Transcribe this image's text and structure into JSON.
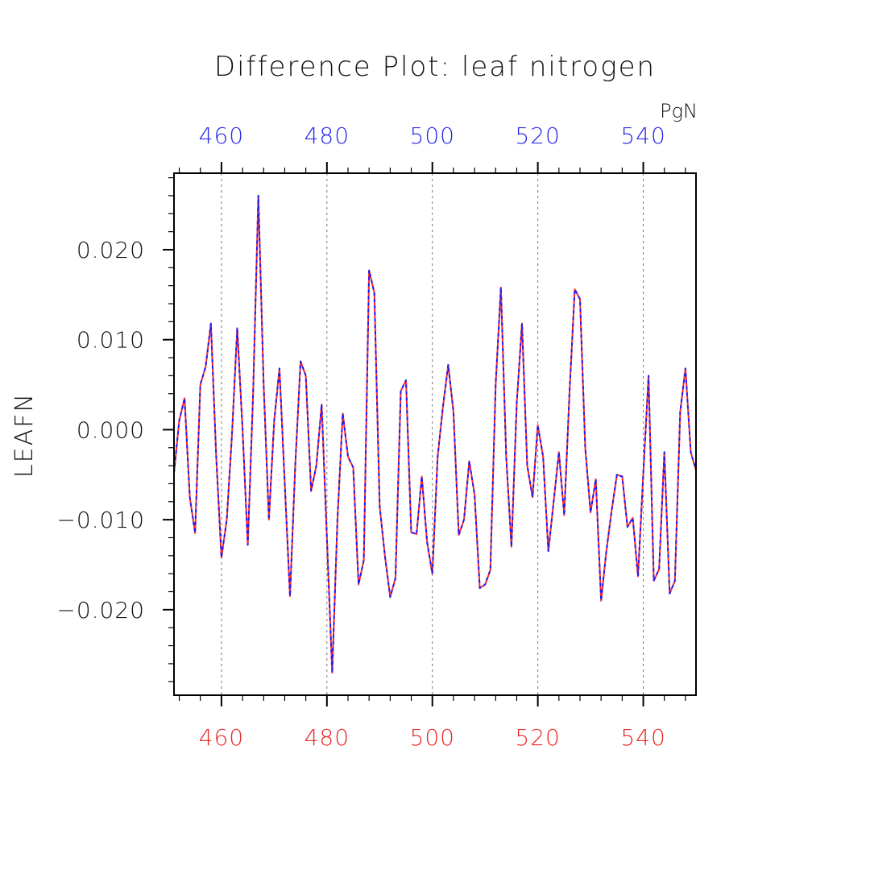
{
  "chart_data": {
    "type": "line",
    "title": "Difference Plot: leaf nitrogen",
    "ylabel": "LEAFN",
    "units": "PgN",
    "xlim": [
      451,
      550
    ],
    "ylim": [
      -0.0295,
      0.0285
    ],
    "x_ticks": [
      460,
      480,
      500,
      520,
      540
    ],
    "y_ticks": [
      -0.02,
      -0.01,
      0.0,
      0.01,
      0.02
    ],
    "y_tick_labels": [
      "−0.020",
      "−0.010",
      "0.000",
      "0.010",
      "0.020"
    ],
    "top_axis_color": "#2a2ae8",
    "bottom_axis_color": "#e82a2a",
    "grid": "vertical dashed at major x ticks",
    "series": [
      {
        "color": "#ff2a2a",
        "style": "solid",
        "x": [
          451,
          452,
          453,
          454,
          455,
          456,
          457,
          458,
          459,
          460,
          461,
          462,
          463,
          464,
          465,
          466,
          467,
          468,
          469,
          470,
          471,
          472,
          473,
          474,
          475,
          476,
          477,
          478,
          479,
          480,
          481,
          482,
          483,
          484,
          485,
          486,
          487,
          488,
          489,
          490,
          491,
          492,
          493,
          494,
          495,
          496,
          497,
          498,
          499,
          500,
          501,
          502,
          503,
          504,
          505,
          506,
          507,
          508,
          509,
          510,
          511,
          512,
          513,
          514,
          515,
          516,
          517,
          518,
          519,
          520,
          521,
          522,
          523,
          524,
          525,
          526,
          527,
          528,
          529,
          530,
          531,
          532,
          533,
          534,
          535,
          536,
          537,
          538,
          539,
          540,
          541,
          542,
          543,
          544,
          545,
          546,
          547,
          548,
          549,
          550
        ],
        "y": [
          -0.0048,
          0.001,
          0.0035,
          -0.0075,
          -0.0115,
          0.005,
          0.007,
          0.0118,
          -0.003,
          -0.0142,
          -0.01,
          -0.0005,
          0.0113,
          0.0,
          -0.0128,
          0.004,
          0.026,
          0.005,
          -0.01,
          0.001,
          0.0068,
          -0.006,
          -0.0185,
          -0.004,
          0.0076,
          0.006,
          -0.0068,
          -0.004,
          0.0028,
          -0.012,
          -0.027,
          -0.01,
          0.0018,
          -0.003,
          -0.0042,
          -0.0172,
          -0.0145,
          0.0177,
          0.0152,
          -0.0085,
          -0.014,
          -0.0186,
          -0.0165,
          0.0043,
          0.0055,
          -0.0114,
          -0.0116,
          -0.0052,
          -0.0125,
          -0.016,
          -0.003,
          0.0025,
          0.0072,
          0.002,
          -0.0117,
          -0.01,
          -0.0035,
          -0.0072,
          -0.0176,
          -0.0172,
          -0.0156,
          0.005,
          0.0158,
          -0.003,
          -0.013,
          0.003,
          0.0118,
          -0.004,
          -0.0075,
          0.0005,
          -0.003,
          -0.0135,
          -0.008,
          -0.0025,
          -0.0095,
          0.004,
          0.0156,
          0.0145,
          -0.002,
          -0.0092,
          -0.0055,
          -0.019,
          -0.0135,
          -0.009,
          -0.005,
          -0.0052,
          -0.0108,
          -0.0098,
          -0.0163,
          -0.005,
          0.006,
          -0.0168,
          -0.0155,
          -0.0025,
          -0.0182,
          -0.0168,
          0.002,
          0.0068,
          -0.0025,
          -0.0045
        ]
      },
      {
        "color": "#1a1aff",
        "style": "dashed",
        "x": [
          451,
          452,
          453,
          454,
          455,
          456,
          457,
          458,
          459,
          460,
          461,
          462,
          463,
          464,
          465,
          466,
          467,
          468,
          469,
          470,
          471,
          472,
          473,
          474,
          475,
          476,
          477,
          478,
          479,
          480,
          481,
          482,
          483,
          484,
          485,
          486,
          487,
          488,
          489,
          490,
          491,
          492,
          493,
          494,
          495,
          496,
          497,
          498,
          499,
          500,
          501,
          502,
          503,
          504,
          505,
          506,
          507,
          508,
          509,
          510,
          511,
          512,
          513,
          514,
          515,
          516,
          517,
          518,
          519,
          520,
          521,
          522,
          523,
          524,
          525,
          526,
          527,
          528,
          529,
          530,
          531,
          532,
          533,
          534,
          535,
          536,
          537,
          538,
          539,
          540,
          541,
          542,
          543,
          544,
          545,
          546,
          547,
          548,
          549,
          550
        ],
        "y": [
          -0.0048,
          0.001,
          0.0035,
          -0.0075,
          -0.0115,
          0.005,
          0.007,
          0.0118,
          -0.003,
          -0.0142,
          -0.01,
          -0.0005,
          0.0113,
          0.0,
          -0.0128,
          0.004,
          0.026,
          0.005,
          -0.01,
          0.001,
          0.0068,
          -0.006,
          -0.0185,
          -0.004,
          0.0076,
          0.006,
          -0.0068,
          -0.004,
          0.0028,
          -0.012,
          -0.027,
          -0.01,
          0.0018,
          -0.003,
          -0.0042,
          -0.0172,
          -0.0145,
          0.0177,
          0.0152,
          -0.0085,
          -0.014,
          -0.0186,
          -0.0165,
          0.0043,
          0.0055,
          -0.0114,
          -0.0116,
          -0.0052,
          -0.0125,
          -0.016,
          -0.003,
          0.0025,
          0.0072,
          0.002,
          -0.0117,
          -0.01,
          -0.0035,
          -0.0072,
          -0.0176,
          -0.0172,
          -0.0156,
          0.005,
          0.0158,
          -0.003,
          -0.013,
          0.003,
          0.0118,
          -0.004,
          -0.0075,
          0.0005,
          -0.003,
          -0.0135,
          -0.008,
          -0.0025,
          -0.0095,
          0.004,
          0.0156,
          0.0145,
          -0.002,
          -0.0092,
          -0.0055,
          -0.019,
          -0.0135,
          -0.009,
          -0.005,
          -0.0052,
          -0.0108,
          -0.0098,
          -0.0163,
          -0.005,
          0.006,
          -0.0168,
          -0.0155,
          -0.0025,
          -0.0182,
          -0.0168,
          0.002,
          0.0068,
          -0.0025,
          -0.0045
        ]
      }
    ]
  }
}
